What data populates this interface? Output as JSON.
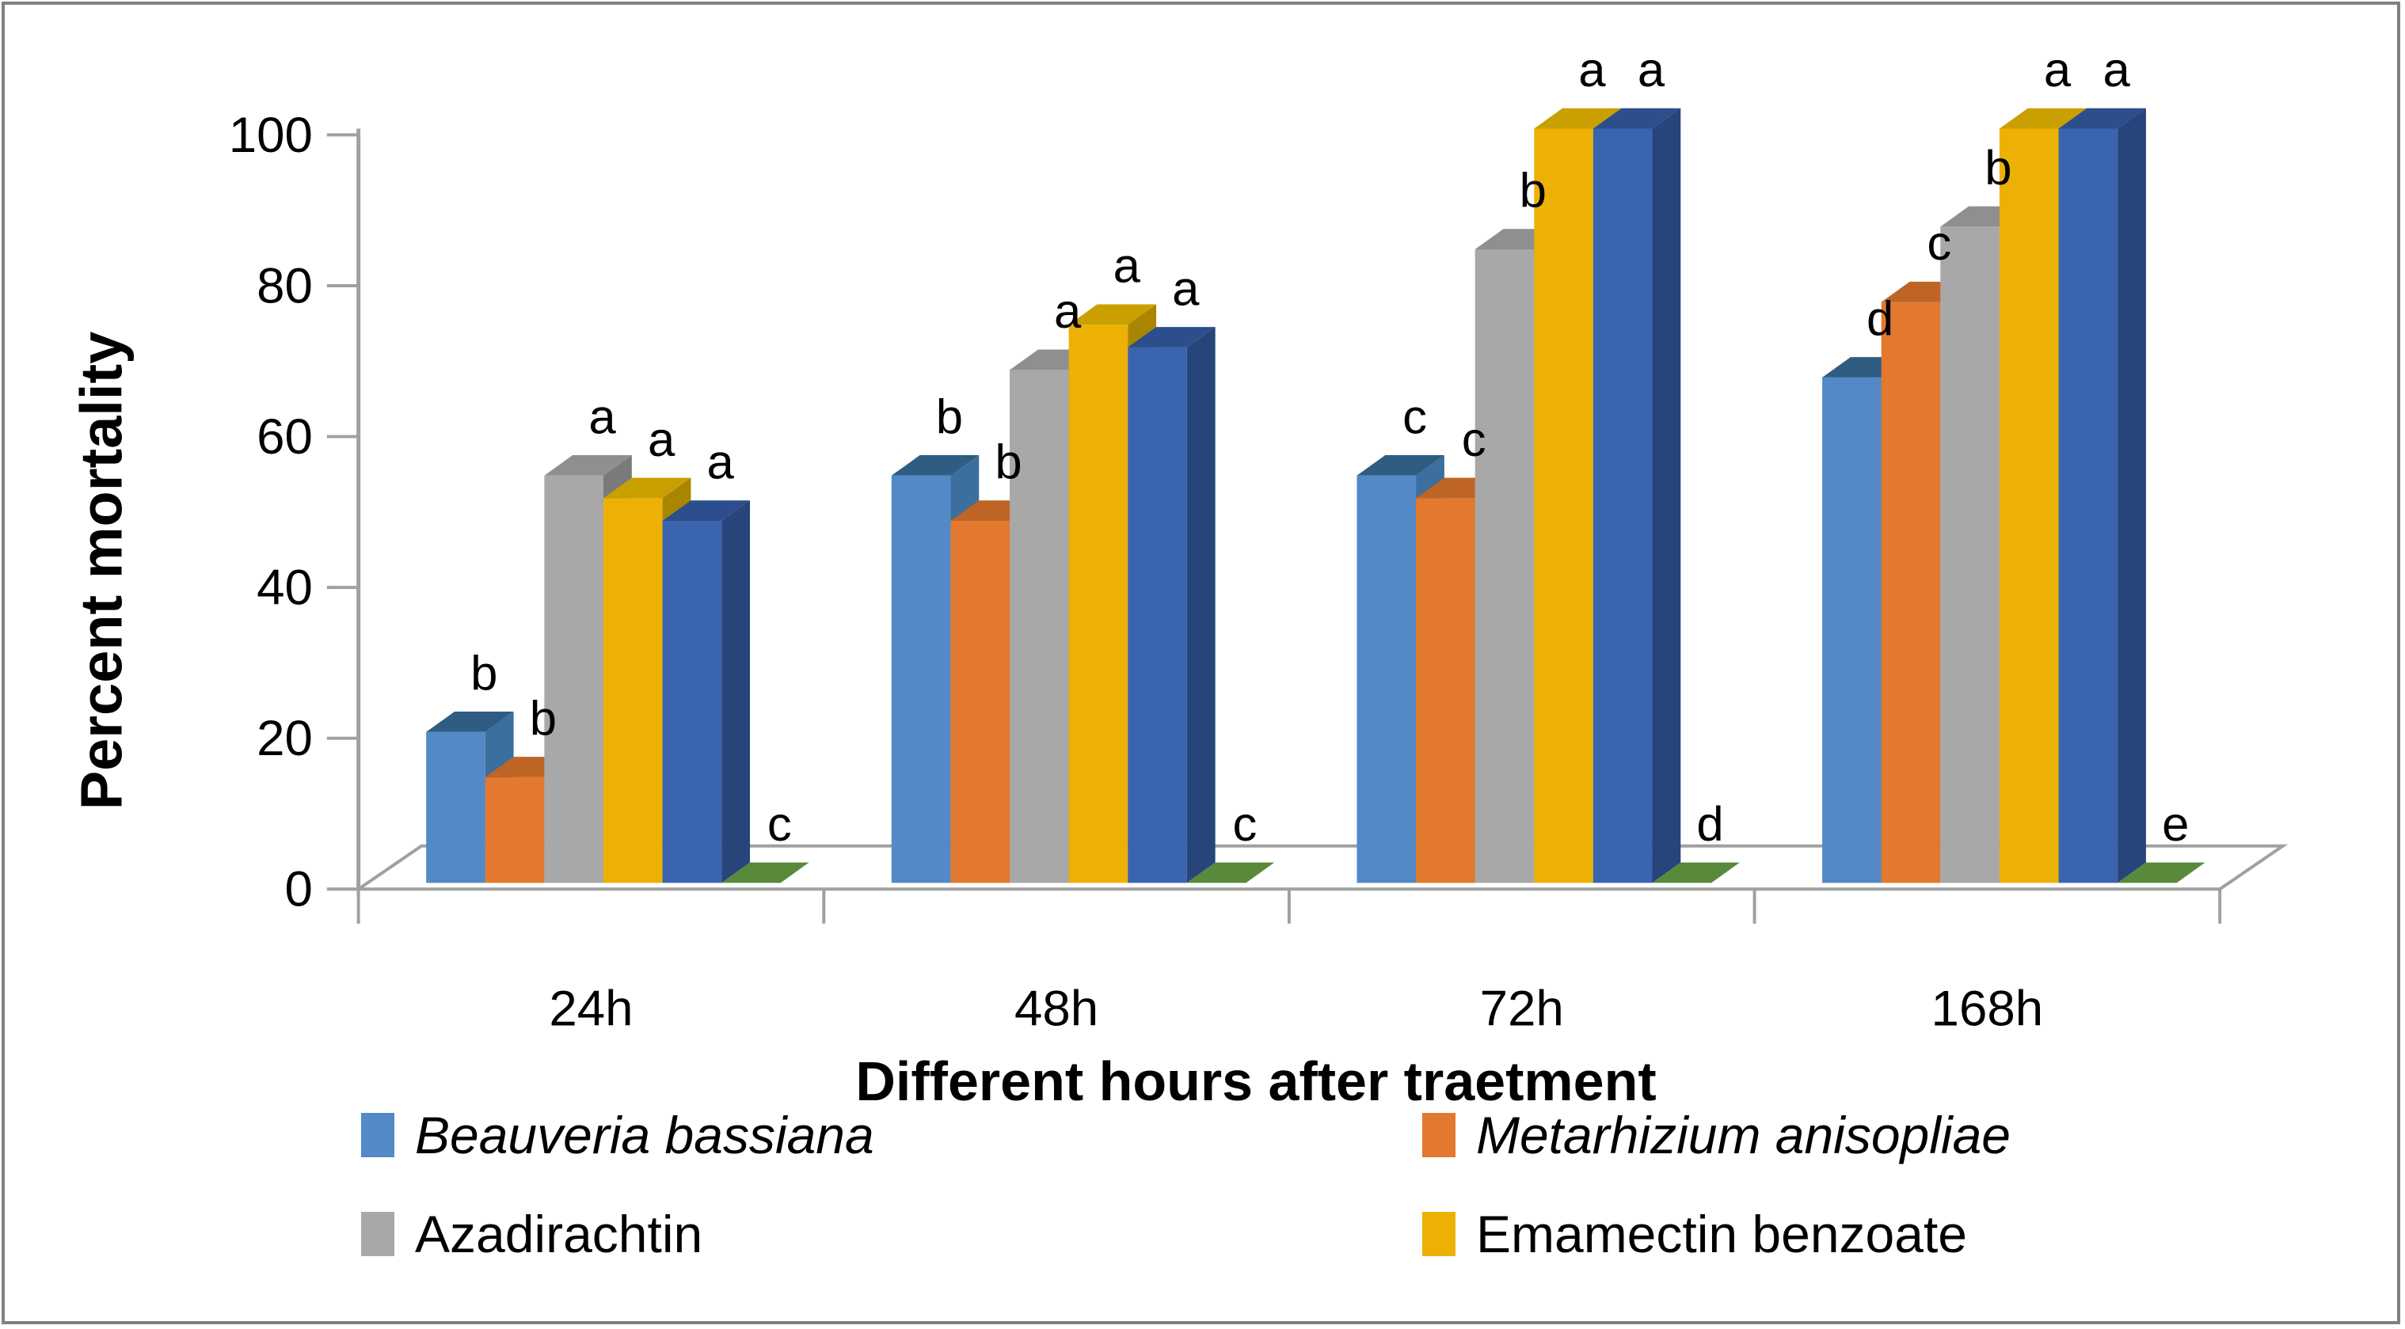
{
  "chart_data": {
    "type": "bar",
    "style": "3d-clustered-column",
    "title": "",
    "xlabel": "Different hours after traetment",
    "ylabel": "Percent mortality",
    "categories": [
      "24h",
      "48h",
      "72h",
      "168h"
    ],
    "y_ticks": [
      0,
      20,
      40,
      60,
      80,
      100
    ],
    "ylim": [
      0,
      100
    ],
    "grid": "off",
    "legend_position": "bottom-two-columns",
    "series": [
      {
        "name": "Beauveria bassiana",
        "legend_visible": true,
        "color": "#5289C6",
        "top_color": "#2F5D82",
        "side_color": "#3C6E9E",
        "values": [
          20,
          54,
          54,
          67
        ],
        "point_labels": [
          "b",
          "b",
          "c",
          "d"
        ]
      },
      {
        "name": "Metarhizium anisopliae",
        "legend_visible": true,
        "color": "#E2792F",
        "top_color": "#BE6526",
        "side_color": "#A8571E",
        "values": [
          14,
          48,
          51,
          77
        ],
        "point_labels": [
          "b",
          "b",
          "c",
          "c"
        ]
      },
      {
        "name": "Azadirachtin",
        "legend_visible": true,
        "color": "#A8A8A8",
        "top_color": "#8F8F8F",
        "side_color": "#7A7A7A",
        "values": [
          54,
          68,
          84,
          87
        ],
        "point_labels": [
          "a",
          "a",
          "b",
          "b"
        ]
      },
      {
        "name": "Emamectin benzoate",
        "legend_visible": true,
        "color": "#ECB104",
        "top_color": "#C9A000",
        "side_color": "#A98500",
        "values": [
          51,
          74,
          100,
          100
        ],
        "point_labels": [
          "a",
          "a",
          "a",
          "a"
        ]
      },
      {
        "name": "unlabeled-dark-blue-series",
        "legend_visible": false,
        "color": "#3B64AF",
        "top_color": "#2C4E8C",
        "side_color": "#27457A",
        "values": [
          48,
          71,
          100,
          100
        ],
        "point_labels": [
          "a",
          "a",
          "a",
          "a"
        ]
      },
      {
        "name": "unlabeled-green-series",
        "legend_visible": false,
        "color": "#70AD47",
        "top_color": "#59893B",
        "side_color": "#4C7630",
        "values": [
          0,
          0,
          0,
          0
        ],
        "point_labels": [
          "c",
          "c",
          "d",
          "e"
        ]
      }
    ],
    "legend": [
      {
        "label": "Beauveria bassiana",
        "italic": true,
        "color": "#5289C6"
      },
      {
        "label": "Metarhizium anisopliae",
        "italic": true,
        "color": "#E2792F"
      },
      {
        "label": "Azadirachtin",
        "italic": false,
        "color": "#A8A8A8"
      },
      {
        "label": "Emamectin benzoate",
        "italic": false,
        "color": "#ECB104"
      }
    ]
  }
}
